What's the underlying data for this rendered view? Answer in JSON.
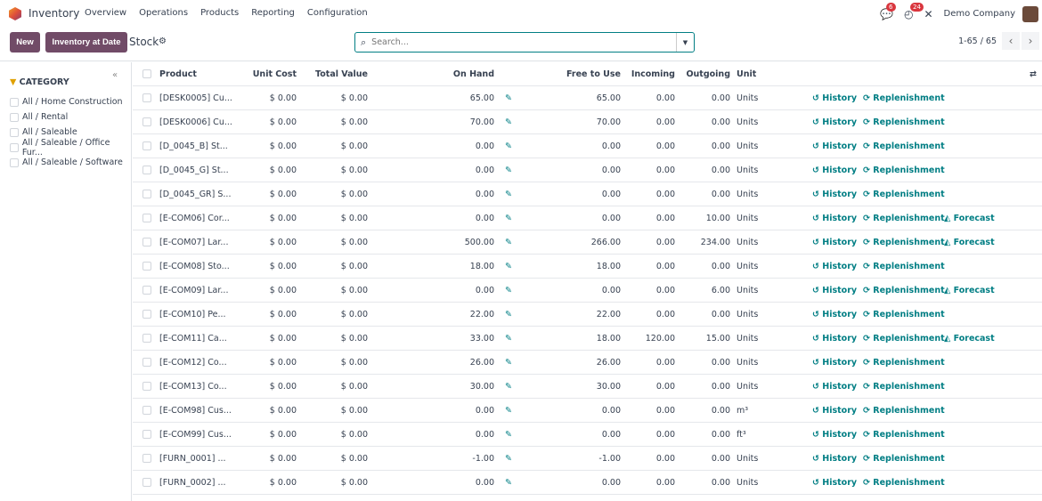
{
  "nav": {
    "app": "Inventory",
    "menu": [
      "Overview",
      "Operations",
      "Products",
      "Reporting",
      "Configuration"
    ],
    "messages_count": "6",
    "activities_count": "24",
    "company": "Demo Company"
  },
  "control": {
    "new_label": "New",
    "inv_date_label": "Inventory at Date",
    "title": "Stock",
    "search_placeholder": "Search...",
    "pager": "1-65 / 65"
  },
  "sidebar": {
    "heading": "CATEGORY",
    "items": [
      "All / Home Construction",
      "All / Rental",
      "All / Saleable",
      "All / Saleable / Office Fur...",
      "All / Saleable / Software"
    ]
  },
  "table": {
    "headers": {
      "product": "Product",
      "unit_cost": "Unit Cost",
      "total_value": "Total Value",
      "on_hand": "On Hand",
      "free": "Free to Use",
      "incoming": "Incoming",
      "outgoing": "Outgoing",
      "unit": "Unit"
    },
    "actions": {
      "history": "History",
      "replenishment": "Replenishment",
      "forecast": "Forecast"
    },
    "rows": [
      {
        "product": "[DESK0005] Cu...",
        "unit_cost": "$ 0.00",
        "total_value": "$ 0.00",
        "on_hand": "65.00",
        "free": "65.00",
        "incoming": "0.00",
        "outgoing": "0.00",
        "unit": "Units",
        "forecast": false
      },
      {
        "product": "[DESK0006] Cu...",
        "unit_cost": "$ 0.00",
        "total_value": "$ 0.00",
        "on_hand": "70.00",
        "free": "70.00",
        "incoming": "0.00",
        "outgoing": "0.00",
        "unit": "Units",
        "forecast": false
      },
      {
        "product": "[D_0045_B] St...",
        "unit_cost": "$ 0.00",
        "total_value": "$ 0.00",
        "on_hand": "0.00",
        "free": "0.00",
        "incoming": "0.00",
        "outgoing": "0.00",
        "unit": "Units",
        "forecast": false
      },
      {
        "product": "[D_0045_G] St...",
        "unit_cost": "$ 0.00",
        "total_value": "$ 0.00",
        "on_hand": "0.00",
        "free": "0.00",
        "incoming": "0.00",
        "outgoing": "0.00",
        "unit": "Units",
        "forecast": false
      },
      {
        "product": "[D_0045_GR] S...",
        "unit_cost": "$ 0.00",
        "total_value": "$ 0.00",
        "on_hand": "0.00",
        "free": "0.00",
        "incoming": "0.00",
        "outgoing": "0.00",
        "unit": "Units",
        "forecast": false
      },
      {
        "product": "[E-COM06] Cor...",
        "unit_cost": "$ 0.00",
        "total_value": "$ 0.00",
        "on_hand": "0.00",
        "free": "0.00",
        "incoming": "0.00",
        "outgoing": "10.00",
        "unit": "Units",
        "forecast": true
      },
      {
        "product": "[E-COM07] Lar...",
        "unit_cost": "$ 0.00",
        "total_value": "$ 0.00",
        "on_hand": "500.00",
        "free": "266.00",
        "incoming": "0.00",
        "outgoing": "234.00",
        "unit": "Units",
        "forecast": true
      },
      {
        "product": "[E-COM08] Sto...",
        "unit_cost": "$ 0.00",
        "total_value": "$ 0.00",
        "on_hand": "18.00",
        "free": "18.00",
        "incoming": "0.00",
        "outgoing": "0.00",
        "unit": "Units",
        "forecast": false
      },
      {
        "product": "[E-COM09] Lar...",
        "unit_cost": "$ 0.00",
        "total_value": "$ 0.00",
        "on_hand": "0.00",
        "free": "0.00",
        "incoming": "0.00",
        "outgoing": "6.00",
        "unit": "Units",
        "forecast": true
      },
      {
        "product": "[E-COM10] Pe...",
        "unit_cost": "$ 0.00",
        "total_value": "$ 0.00",
        "on_hand": "22.00",
        "free": "22.00",
        "incoming": "0.00",
        "outgoing": "0.00",
        "unit": "Units",
        "forecast": false
      },
      {
        "product": "[E-COM11] Ca...",
        "unit_cost": "$ 0.00",
        "total_value": "$ 0.00",
        "on_hand": "33.00",
        "free": "18.00",
        "incoming": "120.00",
        "outgoing": "15.00",
        "unit": "Units",
        "forecast": true
      },
      {
        "product": "[E-COM12] Co...",
        "unit_cost": "$ 0.00",
        "total_value": "$ 0.00",
        "on_hand": "26.00",
        "free": "26.00",
        "incoming": "0.00",
        "outgoing": "0.00",
        "unit": "Units",
        "forecast": false
      },
      {
        "product": "[E-COM13] Co...",
        "unit_cost": "$ 0.00",
        "total_value": "$ 0.00",
        "on_hand": "30.00",
        "free": "30.00",
        "incoming": "0.00",
        "outgoing": "0.00",
        "unit": "Units",
        "forecast": false
      },
      {
        "product": "[E-COM98] Cus...",
        "unit_cost": "$ 0.00",
        "total_value": "$ 0.00",
        "on_hand": "0.00",
        "free": "0.00",
        "incoming": "0.00",
        "outgoing": "0.00",
        "unit": "m³",
        "forecast": false
      },
      {
        "product": "[E-COM99] Cus...",
        "unit_cost": "$ 0.00",
        "total_value": "$ 0.00",
        "on_hand": "0.00",
        "free": "0.00",
        "incoming": "0.00",
        "outgoing": "0.00",
        "unit": "ft³",
        "forecast": false
      },
      {
        "product": "[FURN_0001] ...",
        "unit_cost": "$ 0.00",
        "total_value": "$ 0.00",
        "on_hand": "-1.00",
        "free": "-1.00",
        "incoming": "0.00",
        "outgoing": "0.00",
        "unit": "Units",
        "forecast": false
      },
      {
        "product": "[FURN_0002] ...",
        "unit_cost": "$ 0.00",
        "total_value": "$ 0.00",
        "on_hand": "0.00",
        "free": "0.00",
        "incoming": "0.00",
        "outgoing": "0.00",
        "unit": "Units",
        "forecast": false
      }
    ]
  },
  "colors": {
    "brand": "#714B67",
    "link": "#017e84",
    "badge": "#d9363e"
  }
}
